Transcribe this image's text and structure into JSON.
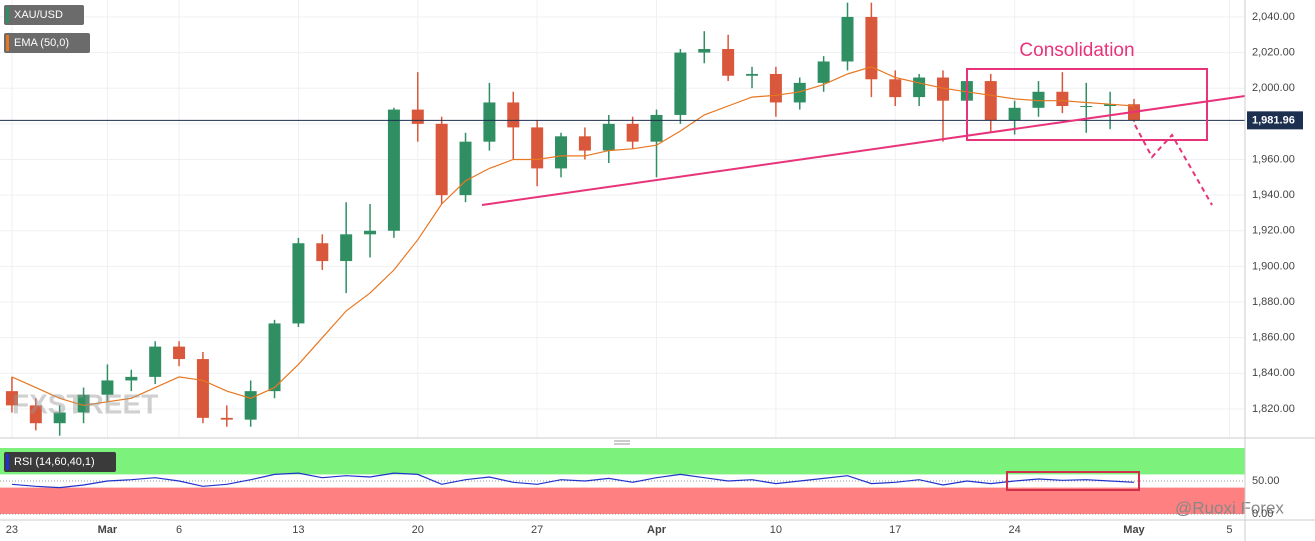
{
  "chart_data": [
    {
      "type": "candlestick",
      "series": [
        {
          "name": "XAU/USD",
          "color": "#2f8f62",
          "down_color": "#d9573a",
          "open": [
            1830,
            1822,
            1812,
            1818,
            1828,
            1836,
            1838,
            1855,
            1848,
            1815,
            1814,
            1830,
            1868,
            1913,
            1903,
            1918,
            1920,
            1988,
            1980,
            1940,
            1970,
            1992,
            1978,
            1955,
            1973,
            1965,
            1980,
            1970,
            1985,
            2020,
            2022,
            2007,
            2008,
            1992,
            2003,
            2015,
            2040,
            2005,
            1995,
            2006,
            1993,
            2004,
            1982,
            1989,
            1998,
            1990,
            1990,
            1991
          ],
          "high": [
            1838,
            1826,
            1822,
            1832,
            1845,
            1842,
            1858,
            1858,
            1852,
            1822,
            1836,
            1870,
            1916,
            1918,
            1936,
            1935,
            1989,
            2009,
            1984,
            1975,
            2003,
            1998,
            1982,
            1975,
            1978,
            1985,
            1984,
            1988,
            2022,
            2032,
            2030,
            2012,
            2012,
            2006,
            2018,
            2048,
            2048,
            2010,
            2008,
            2010,
            2010,
            2008,
            1993,
            2004,
            2009,
            2003,
            1998,
            1994
          ],
          "low": [
            1818,
            1808,
            1805,
            1812,
            1824,
            1830,
            1834,
            1844,
            1812,
            1810,
            1810,
            1826,
            1866,
            1898,
            1885,
            1905,
            1916,
            1970,
            1935,
            1936,
            1965,
            1960,
            1945,
            1950,
            1960,
            1958,
            1966,
            1950,
            1980,
            2014,
            2004,
            2000,
            1984,
            1988,
            1998,
            2010,
            1995,
            1990,
            1990,
            1970,
            1988,
            1975,
            1974,
            1984,
            1986,
            1975,
            1977,
            1981
          ],
          "close": [
            1822,
            1812,
            1818,
            1828,
            1836,
            1838,
            1855,
            1848,
            1815,
            1814,
            1830,
            1868,
            1913,
            1903,
            1918,
            1920,
            1988,
            1980,
            1940,
            1970,
            1992,
            1978,
            1955,
            1973,
            1965,
            1980,
            1970,
            1985,
            2020,
            2022,
            2007,
            2008,
            1992,
            2003,
            2015,
            2040,
            2005,
            1995,
            2006,
            1993,
            2004,
            1982,
            1989,
            1998,
            1990,
            1990,
            1991,
            1982
          ]
        },
        {
          "name": "EMA (50,0)",
          "type": "line",
          "color": "#e87722",
          "values": [
            1838,
            1832,
            1826,
            1822,
            1824,
            1826,
            1832,
            1838,
            1836,
            1830,
            1826,
            1832,
            1845,
            1860,
            1875,
            1885,
            1898,
            1915,
            1935,
            1948,
            1955,
            1960,
            1960,
            1962,
            1962,
            1965,
            1966,
            1968,
            1976,
            1985,
            1990,
            1995,
            1996,
            1998,
            2002,
            2008,
            2012,
            2006,
            2003,
            2000,
            1998,
            1996,
            1994,
            1993,
            1993,
            1992,
            1991,
            1990
          ]
        }
      ],
      "xlim": [
        -0.5,
        51.65
      ],
      "xticks": [
        {
          "value": 0,
          "label": "23"
        },
        {
          "value": 4,
          "label": "Mar"
        },
        {
          "value": 7,
          "label": "6"
        },
        {
          "value": 12,
          "label": "13"
        },
        {
          "value": 17,
          "label": "20"
        },
        {
          "value": 22,
          "label": "27"
        },
        {
          "value": 27,
          "label": "Apr"
        },
        {
          "value": 32,
          "label": "10"
        },
        {
          "value": 37,
          "label": "17"
        },
        {
          "value": 42,
          "label": "24"
        },
        {
          "value": 47,
          "label": "May"
        },
        {
          "value": 51,
          "label": "5"
        }
      ],
      "ylim": [
        1803.7,
        2049.5
      ],
      "yticks": [
        {
          "value": 1820,
          "label": "1,820.00"
        },
        {
          "value": 1840,
          "label": "1,840.00"
        },
        {
          "value": 1860,
          "label": "1,860.00"
        },
        {
          "value": 1880,
          "label": "1,880.00"
        },
        {
          "value": 1900,
          "label": "1,900.00"
        },
        {
          "value": 1920,
          "label": "1,920.00"
        },
        {
          "value": 1940,
          "label": "1,940.00"
        },
        {
          "value": 1960,
          "label": "1,960.00"
        },
        {
          "value": 1980,
          "label": "1,980.00"
        },
        {
          "value": 2000,
          "label": "2,000.00"
        },
        {
          "value": 2020,
          "label": "2,020.00"
        },
        {
          "value": 2040,
          "label": "2,040.00"
        }
      ],
      "current_price": {
        "value": 1981.96,
        "label": "1,981.96"
      },
      "annotation": "Consolidation",
      "watermark": "FXSTREET",
      "credit": "@Ruoxi Forex",
      "grid": true
    },
    {
      "type": "line",
      "series": [
        {
          "name": "RSI (14,60,40,1)",
          "color": "#2233cc",
          "values": [
            45,
            42,
            40,
            44,
            50,
            52,
            55,
            50,
            42,
            45,
            52,
            60,
            62,
            55,
            58,
            56,
            62,
            60,
            45,
            52,
            56,
            48,
            45,
            52,
            50,
            54,
            48,
            55,
            60,
            55,
            50,
            52,
            46,
            50,
            54,
            58,
            46,
            48,
            52,
            44,
            50,
            46,
            50,
            53,
            51,
            52,
            50,
            48
          ]
        }
      ],
      "ylim": [
        0,
        100
      ],
      "yticks": [
        {
          "value": 50,
          "label": "50.00"
        },
        {
          "value": 0,
          "label": "0.00"
        }
      ],
      "bands": [
        {
          "from": 60,
          "to": 100,
          "color": "#7cf27c"
        },
        {
          "from": 0,
          "to": 40,
          "color": "#ff8080"
        }
      ]
    }
  ]
}
